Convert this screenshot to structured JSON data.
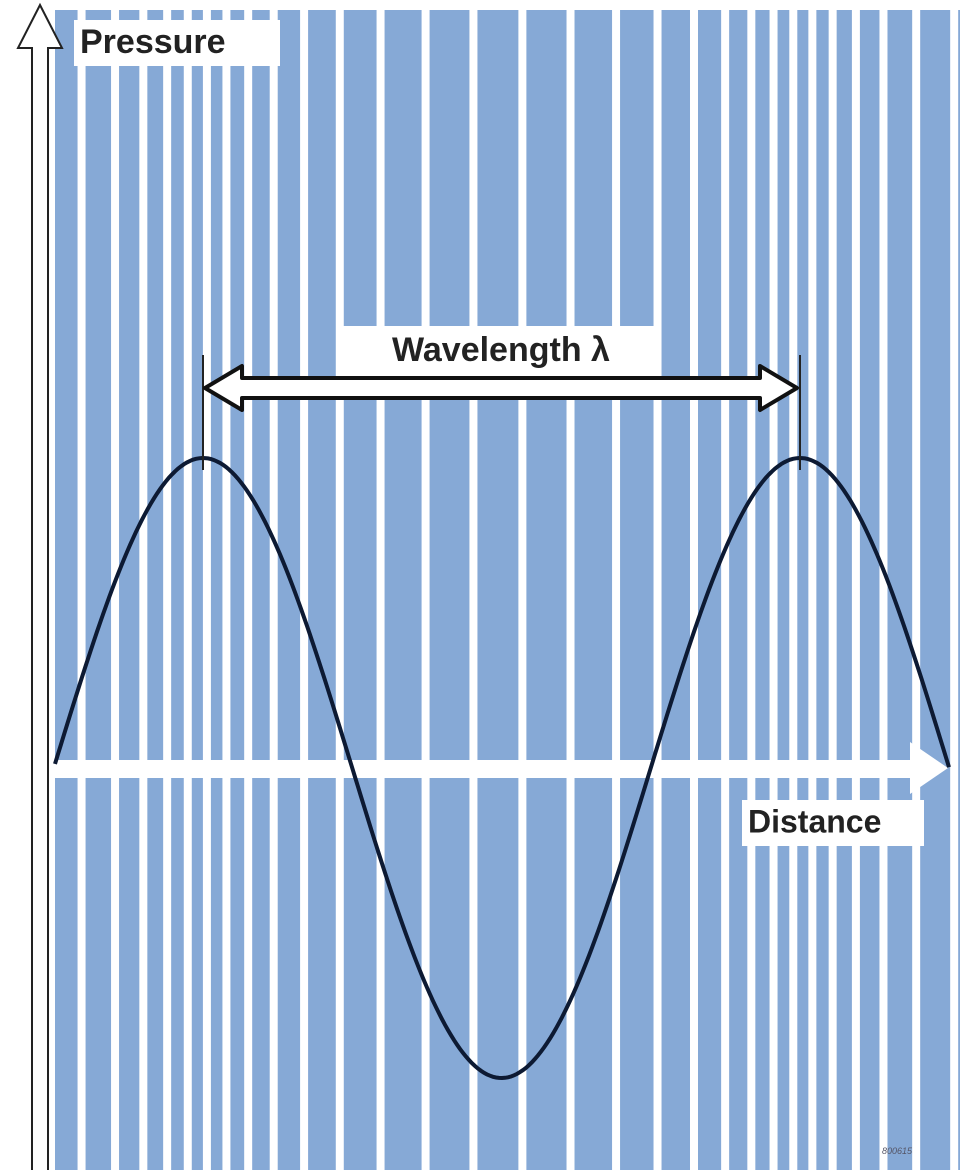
{
  "labels": {
    "y_axis": "Pressure",
    "wavelength": "Wavelength λ",
    "x_axis": "Distance",
    "figure_id": "800615"
  }
}
